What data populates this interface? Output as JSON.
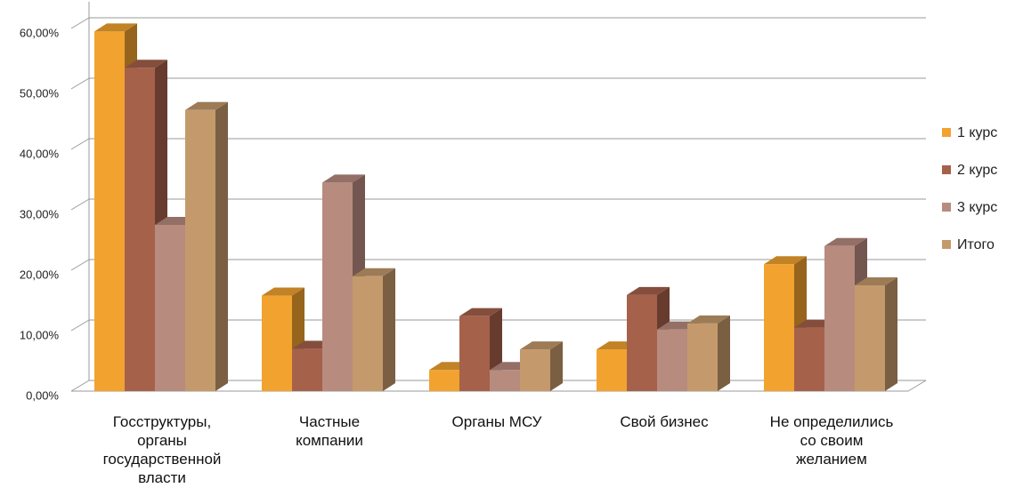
{
  "chart_data": {
    "type": "bar3d",
    "categories": [
      "Госструктуры,\nорганы\nгосударственной\nвласти",
      "Частные\nкомпании",
      "Органы МСУ",
      "Свой бизнес",
      "Не определились\nсо своим\nжеланием"
    ],
    "series": [
      {
        "name": "1 курс",
        "color": "#f2a22f",
        "values": [
          59.5,
          15.8,
          3.5,
          6.9,
          21
        ]
      },
      {
        "name": "2 курс",
        "color": "#a6614b",
        "values": [
          53.5,
          7,
          12.4,
          15.9,
          10.5
        ]
      },
      {
        "name": "3 курс",
        "color": "#b88b7f",
        "values": [
          27.5,
          34.5,
          3.5,
          10.2,
          24
        ]
      },
      {
        "name": "Итого",
        "color": "#c49a6c",
        "values": [
          46.5,
          19,
          6.9,
          11.2,
          17.5
        ]
      }
    ],
    "ylim": [
      0,
      60
    ],
    "yticks": [
      {
        "value": 0,
        "label": "0,00%"
      },
      {
        "value": 10,
        "label": "10,00%"
      },
      {
        "value": 20,
        "label": "20,00%"
      },
      {
        "value": 30,
        "label": "30,00%"
      },
      {
        "value": 40,
        "label": "40,00%"
      },
      {
        "value": 50,
        "label": "50,00%"
      },
      {
        "value": 60,
        "label": "60,00%"
      }
    ],
    "grid": true,
    "legend": "right"
  }
}
